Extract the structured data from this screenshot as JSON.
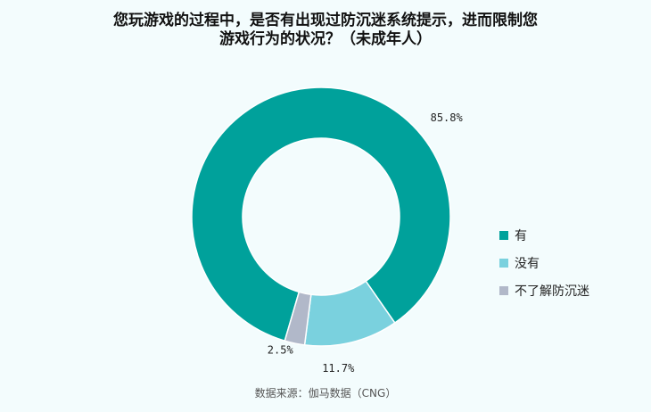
{
  "title_lines": [
    "您玩游戏的过程中，是否有出现过防沉迷系统提示，进而限制您",
    "游戏行为的状况？（未成年人）"
  ],
  "source": "数据来源：伽马数据（CNG）",
  "chart_data": {
    "type": "pie",
    "donut": true,
    "title": "您玩游戏的过程中，是否有出现过防沉迷系统提示，进而限制您游戏行为的状况？（未成年人）",
    "categories": [
      "有",
      "没有",
      "不了解防沉迷"
    ],
    "values": [
      85.8,
      11.7,
      2.5
    ],
    "value_labels": [
      "85.8%",
      "11.7%",
      "2.5%"
    ],
    "colors": [
      "#00a19b",
      "#7ad1de",
      "#b1b8c9"
    ],
    "legend_position": "right",
    "unit": "%"
  }
}
